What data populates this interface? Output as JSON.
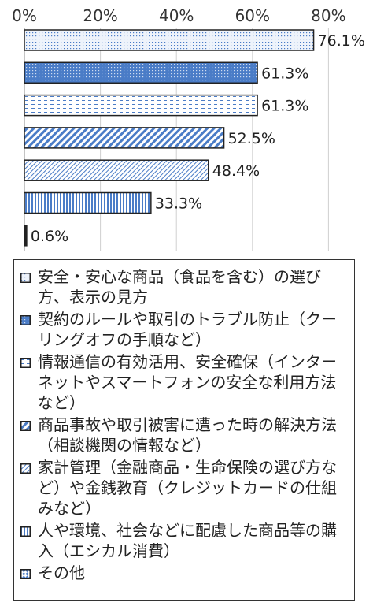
{
  "chart_data": {
    "type": "bar",
    "orientation": "horizontal",
    "title": "",
    "xlabel": "",
    "ylabel": "",
    "xlim": [
      0,
      80
    ],
    "x_ticks": [
      "0%",
      "20%",
      "40%",
      "60%",
      "80%"
    ],
    "grid": true,
    "legend_position": "bottom",
    "categories": [
      "安全・安心な商品（食品を含む）の選び方、表示の見方",
      "契約のルールや取引のトラブル防止（クーリングオフの手順など）",
      "情報通信の有効活用、安全確保（インターネットやスマートフォンの安全な利用方法など）",
      "商品事故や取引被害に遭った時の解決方法（相談機関の情報など）",
      "家計管理（金融商品・生命保険の選び方など）や金銭教育（クレジットカードの仕組みなど）",
      "人や環境、社会などに配慮した商品等の購入（エシカル消費）",
      "その他"
    ],
    "values": [
      76.1,
      61.3,
      61.3,
      52.5,
      48.4,
      33.3,
      0.6
    ],
    "value_labels": [
      "76.1%",
      "61.3%",
      "61.3%",
      "52.5%",
      "48.4%",
      "33.3%",
      "0.6%"
    ],
    "patterns": [
      "dots",
      "dots-blue",
      "dashes",
      "diagonal",
      "fine-hatch",
      "vertical",
      "checker"
    ],
    "colors": {
      "accent": "#4a7cc7",
      "grid": "#d0d0d0",
      "border": "#222222"
    }
  }
}
